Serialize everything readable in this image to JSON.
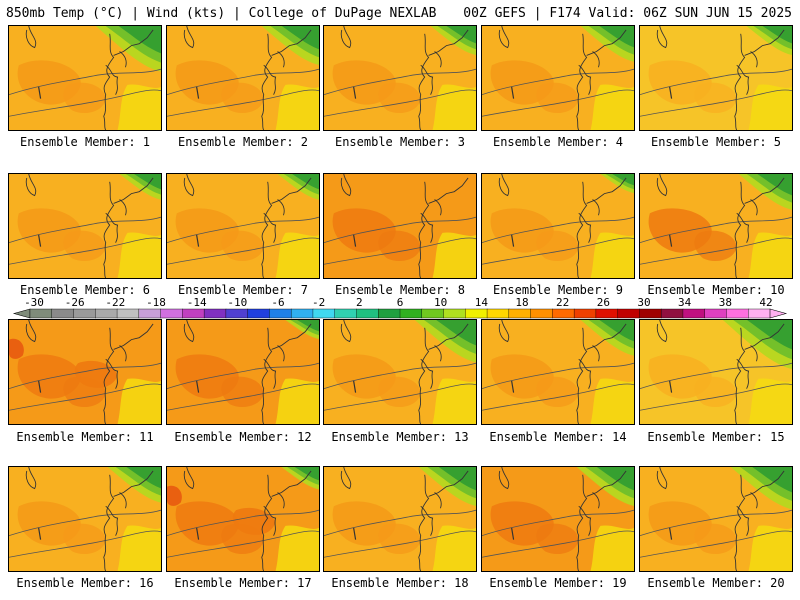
{
  "header": {
    "left": "850mb Temp (°C) | Wind (kts) | College of DuPage NEXLAB",
    "right": "00Z GEFS | F174 Valid: 06Z SUN JUN 15 2025"
  },
  "colorbar": {
    "labels": [
      "-30",
      "-26",
      "-22",
      "-18",
      "-14",
      "-10",
      "-6",
      "-2",
      "2",
      "6",
      "10",
      "14",
      "18",
      "22",
      "26",
      "30",
      "34",
      "38",
      "42"
    ],
    "colors": [
      "#7f8c7a",
      "#8a8a8a",
      "#9a9a9a",
      "#aaaaaa",
      "#c0c0c0",
      "#c8a0d8",
      "#d070e0",
      "#c040c0",
      "#8030c0",
      "#5040d0",
      "#2040e0",
      "#2080e8",
      "#30b0f0",
      "#40d8f0",
      "#30d0b0",
      "#20c080",
      "#20a040",
      "#30b020",
      "#70c820",
      "#b0e020",
      "#f0f000",
      "#ffd700",
      "#ffb000",
      "#ff9000",
      "#ff6a00",
      "#f04000",
      "#e01000",
      "#c00000",
      "#a00000",
      "#901040",
      "#c01080",
      "#e040c0",
      "#ff70e0",
      "#ffb0f0"
    ]
  },
  "palette": {
    "yellow": "#f4dc10",
    "gold": "#f6c428",
    "light_orange": "#f8b020",
    "orange": "#f59a18",
    "dark_orange": "#ee7a10",
    "red_orange": "#e85a10",
    "green": "#36a030",
    "light_green": "#74c02a",
    "lime": "#b6d820",
    "coast": "#333333",
    "contour": "#555555"
  },
  "members": [
    {
      "label": "Ensemble Member: 1",
      "base": "light_orange",
      "warm": [
        "orange"
      ],
      "green": 0.9,
      "hot": 0
    },
    {
      "label": "Ensemble Member: 2",
      "base": "light_orange",
      "warm": [
        "orange"
      ],
      "green": 0.7,
      "hot": 0
    },
    {
      "label": "Ensemble Member: 3",
      "base": "light_orange",
      "warm": [
        "orange"
      ],
      "green": 0.4,
      "hot": 0
    },
    {
      "label": "Ensemble Member: 4",
      "base": "light_orange",
      "warm": [
        "orange"
      ],
      "green": 0.6,
      "hot": 0
    },
    {
      "label": "Ensemble Member: 5",
      "base": "gold",
      "warm": [
        "light_orange"
      ],
      "green": 0.4,
      "hot": 0
    },
    {
      "label": "Ensemble Member: 6",
      "base": "light_orange",
      "warm": [
        "orange"
      ],
      "green": 0.3,
      "hot": 0
    },
    {
      "label": "Ensemble Member: 7",
      "base": "light_orange",
      "warm": [
        "orange"
      ],
      "green": 0.3,
      "hot": 0
    },
    {
      "label": "Ensemble Member: 8",
      "base": "orange",
      "warm": [
        "dark_orange"
      ],
      "green": 0.0,
      "hot": 0
    },
    {
      "label": "Ensemble Member: 9",
      "base": "light_orange",
      "warm": [
        "orange"
      ],
      "green": 0.1,
      "hot": 0
    },
    {
      "label": "Ensemble Member: 10",
      "base": "light_orange",
      "warm": [
        "dark_orange"
      ],
      "green": 0.6,
      "hot": 0
    },
    {
      "label": "Ensemble Member: 11",
      "base": "orange",
      "warm": [
        "dark_orange"
      ],
      "green": 0.0,
      "hot": 1
    },
    {
      "label": "Ensemble Member: 12",
      "base": "orange",
      "warm": [
        "dark_orange"
      ],
      "green": 0.1,
      "hot": 0
    },
    {
      "label": "Ensemble Member: 13",
      "base": "light_orange",
      "warm": [
        "orange"
      ],
      "green": 0.8,
      "hot": 0
    },
    {
      "label": "Ensemble Member: 14",
      "base": "light_orange",
      "warm": [
        "orange"
      ],
      "green": 0.6,
      "hot": 0
    },
    {
      "label": "Ensemble Member: 15",
      "base": "gold",
      "warm": [
        "light_orange"
      ],
      "green": 1.0,
      "hot": 0
    },
    {
      "label": "Ensemble Member: 16",
      "base": "light_orange",
      "warm": [
        "orange"
      ],
      "green": 0.6,
      "hot": 0
    },
    {
      "label": "Ensemble Member: 17",
      "base": "orange",
      "warm": [
        "dark_orange"
      ],
      "green": 0.2,
      "hot": 1
    },
    {
      "label": "Ensemble Member: 18",
      "base": "light_orange",
      "warm": [
        "orange"
      ],
      "green": 0.7,
      "hot": 0
    },
    {
      "label": "Ensemble Member: 19",
      "base": "orange",
      "warm": [
        "dark_orange"
      ],
      "green": 0.7,
      "hot": 0
    },
    {
      "label": "Ensemble Member: 20",
      "base": "light_orange",
      "warm": [
        "orange"
      ],
      "green": 0.8,
      "hot": 0
    }
  ]
}
